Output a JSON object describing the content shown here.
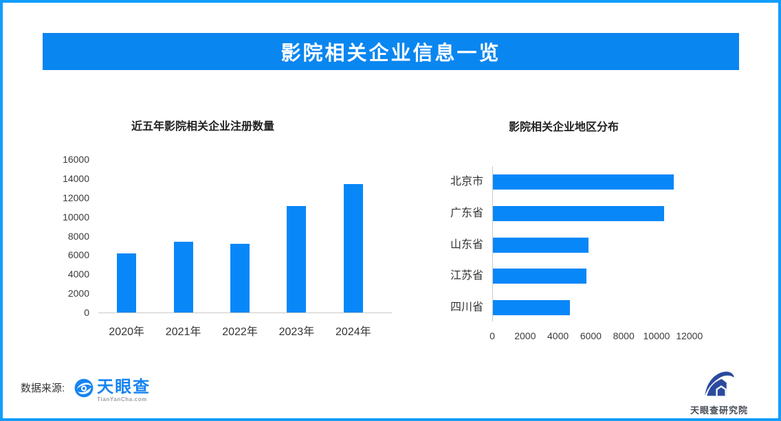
{
  "page": {
    "title": "影院相关企业信息一览"
  },
  "footer": {
    "source_label": "数据来源:",
    "tianyancha_logo": {
      "name": "天眼查",
      "domain": "TianYanCha.com"
    },
    "institute_logo": {
      "name": "天眼查研究院"
    }
  },
  "colors": {
    "accent_blue": "#0887f8",
    "banner_blue": "#0a86f0",
    "border_blue": "#119dfc",
    "logo_blue": "#1583f0",
    "logo_navy": "#2b4a9e",
    "axis_line_gray": "#c9c9c9"
  },
  "chart_data": [
    {
      "type": "bar",
      "title": "近五年影院相关企业注册数量",
      "categories": [
        "2020年",
        "2021年",
        "2022年",
        "2023年",
        "2024年"
      ],
      "values": [
        6200,
        7400,
        7200,
        11100,
        13400
      ],
      "xlabel": "",
      "ylabel": "",
      "ylim": [
        0,
        16000
      ],
      "ytick_step": 2000,
      "grid": false,
      "legend": false,
      "bar_color": "#0887f8"
    },
    {
      "type": "bar-horizontal",
      "title": "影院相关企业地区分布",
      "categories": [
        "北京市",
        "广东省",
        "山东省",
        "江苏省",
        "四川省"
      ],
      "values": [
        11000,
        10400,
        5800,
        5700,
        4700
      ],
      "xlabel": "",
      "ylabel": "",
      "xlim": [
        0,
        12000
      ],
      "xtick_step": 2000,
      "grid": false,
      "legend": false,
      "bar_color": "#0887f8"
    }
  ]
}
